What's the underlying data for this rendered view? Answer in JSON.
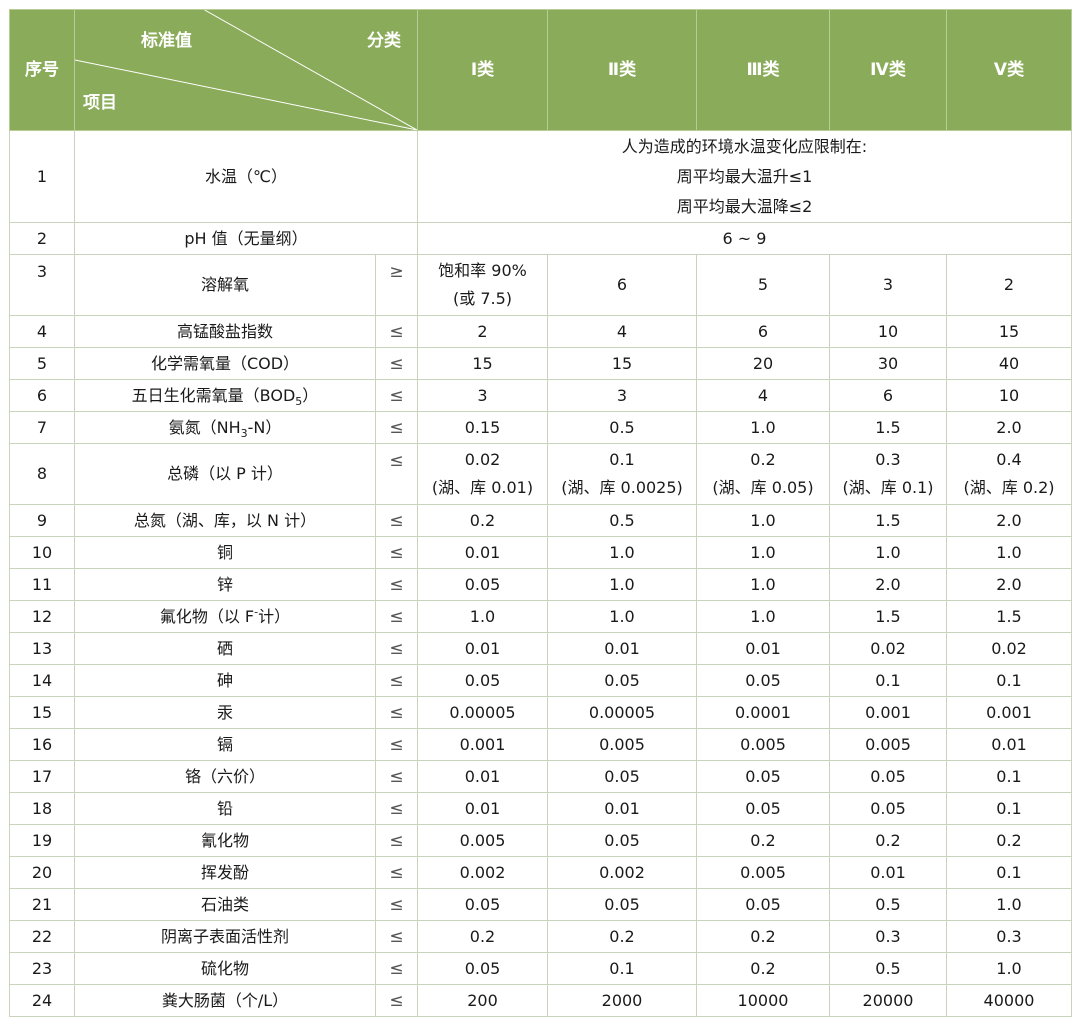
{
  "header": {
    "seq": "序号",
    "standard": "标准值",
    "category": "分类",
    "item": "项目",
    "classes": [
      "Ⅰ类",
      "Ⅱ类",
      "Ⅲ类",
      "Ⅳ类",
      "Ⅴ类"
    ]
  },
  "rows": {
    "r1": {
      "no": "1",
      "name": "水温（℃）",
      "lines": [
        "人为造成的环境水温变化应限制在:",
        "周平均最大温升≤1",
        "周平均最大温降≤2"
      ]
    },
    "r2": {
      "no": "2",
      "name": "pH 值（无量纲）",
      "value": "6 ~ 9"
    },
    "r3": {
      "no": "3",
      "name": "溶解氧",
      "sym": "≥",
      "v1a": "饱和率 90%",
      "v1b": "(或 7.5)",
      "v": [
        "6",
        "5",
        "3",
        "2"
      ]
    },
    "r4": {
      "no": "4",
      "name": "高锰酸盐指数",
      "sym": "≤",
      "v": [
        "2",
        "4",
        "6",
        "10",
        "15"
      ]
    },
    "r5": {
      "no": "5",
      "name": "化学需氧量（COD）",
      "sym": "≤",
      "v": [
        "15",
        "15",
        "20",
        "30",
        "40"
      ]
    },
    "r6": {
      "no": "6",
      "name_a": "五日生化需氧量（BOD",
      "name_sub": "5",
      "name_b": "）",
      "sym": "≤",
      "v": [
        "3",
        "3",
        "4",
        "6",
        "10"
      ]
    },
    "r7": {
      "no": "7",
      "name_a": "氨氮（NH",
      "name_sub": "3",
      "name_b": "-N）",
      "sym": "≤",
      "v": [
        "0.15",
        "0.5",
        "1.0",
        "1.5",
        "2.0"
      ]
    },
    "r8": {
      "no": "8",
      "name": "总磷（以 P 计）",
      "sym": "≤",
      "v": [
        "0.02",
        "0.1",
        "0.2",
        "0.3",
        "0.4"
      ],
      "n": [
        "(湖、库 0.01)",
        "(湖、库 0.0025)",
        "(湖、库 0.05)",
        "(湖、库 0.1)",
        "(湖、库 0.2)"
      ]
    },
    "r9": {
      "no": "9",
      "name": "总氮（湖、库，以 N 计）",
      "sym": "≤",
      "v": [
        "0.2",
        "0.5",
        "1.0",
        "1.5",
        "2.0"
      ]
    },
    "r10": {
      "no": "10",
      "name": "铜",
      "sym": "≤",
      "v": [
        "0.01",
        "1.0",
        "1.0",
        "1.0",
        "1.0"
      ]
    },
    "r11": {
      "no": "11",
      "name": "锌",
      "sym": "≤",
      "v": [
        "0.05",
        "1.0",
        "1.0",
        "2.0",
        "2.0"
      ]
    },
    "r12": {
      "no": "12",
      "name_a": "氟化物（以 F",
      "name_sup": "-",
      "name_b": "计）",
      "sym": "≤",
      "v": [
        "1.0",
        "1.0",
        "1.0",
        "1.5",
        "1.5"
      ]
    },
    "r13": {
      "no": "13",
      "name": "硒",
      "sym": "≤",
      "v": [
        "0.01",
        "0.01",
        "0.01",
        "0.02",
        "0.02"
      ]
    },
    "r14": {
      "no": "14",
      "name": "砷",
      "sym": "≤",
      "v": [
        "0.05",
        "0.05",
        "0.05",
        "0.1",
        "0.1"
      ]
    },
    "r15": {
      "no": "15",
      "name": "汞",
      "sym": "≤",
      "v": [
        "0.00005",
        "0.00005",
        "0.0001",
        "0.001",
        "0.001"
      ]
    },
    "r16": {
      "no": "16",
      "name": "镉",
      "sym": "≤",
      "v": [
        "0.001",
        "0.005",
        "0.005",
        "0.005",
        "0.01"
      ]
    },
    "r17": {
      "no": "17",
      "name": "铬（六价）",
      "sym": "≤",
      "v": [
        "0.01",
        "0.05",
        "0.05",
        "0.05",
        "0.1"
      ]
    },
    "r18": {
      "no": "18",
      "name": "铅",
      "sym": "≤",
      "v": [
        "0.01",
        "0.01",
        "0.05",
        "0.05",
        "0.1"
      ]
    },
    "r19": {
      "no": "19",
      "name": "氰化物",
      "sym": "≤",
      "v": [
        "0.005",
        "0.05",
        "0.2",
        "0.2",
        "0.2"
      ]
    },
    "r20": {
      "no": "20",
      "name": "挥发酚",
      "sym": "≤",
      "v": [
        "0.002",
        "0.002",
        "0.005",
        "0.01",
        "0.1"
      ]
    },
    "r21": {
      "no": "21",
      "name": "石油类",
      "sym": "≤",
      "v": [
        "0.05",
        "0.05",
        "0.05",
        "0.5",
        "1.0"
      ]
    },
    "r22": {
      "no": "22",
      "name": "阴离子表面活性剂",
      "sym": "≤",
      "v": [
        "0.2",
        "0.2",
        "0.2",
        "0.3",
        "0.3"
      ]
    },
    "r23": {
      "no": "23",
      "name": "硫化物",
      "sym": "≤",
      "v": [
        "0.05",
        "0.1",
        "0.2",
        "0.5",
        "1.0"
      ]
    },
    "r24": {
      "no": "24",
      "name": "粪大肠菌（个/L）",
      "sym": "≤",
      "v": [
        "200",
        "2000",
        "10000",
        "20000",
        "40000"
      ]
    }
  },
  "colors": {
    "header_bg": "#8aab59",
    "border": "#c9d3bd"
  }
}
